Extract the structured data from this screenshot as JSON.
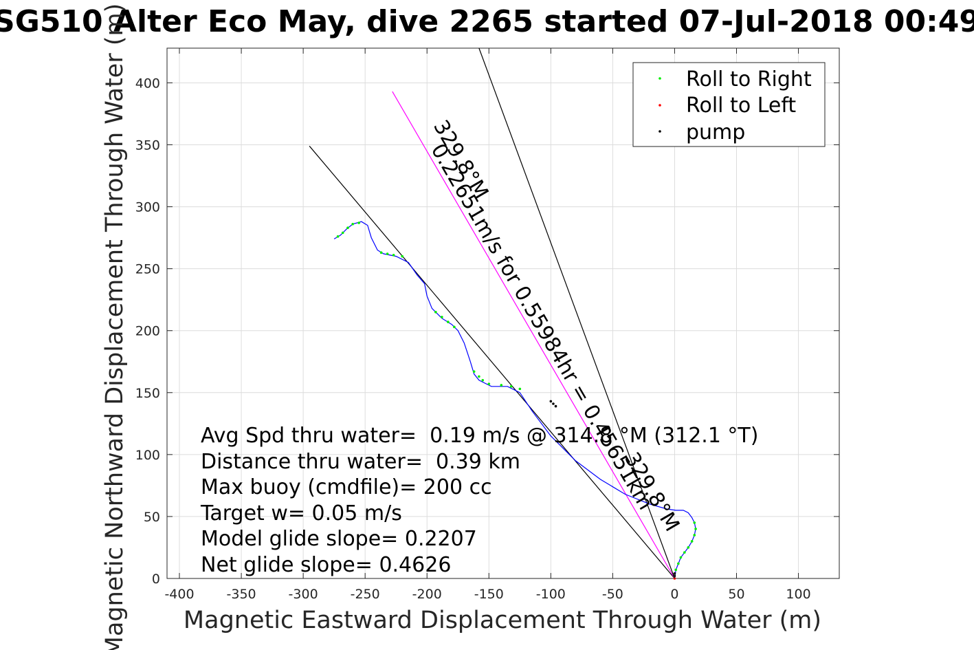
{
  "chart_data": {
    "type": "scatter",
    "title": "SG510 Alter Eco May, dive 2265 started 07-Jul-2018 00:49",
    "xlabel": "Magnetic Eastward Displacement Through Water (m)",
    "ylabel": "Magnetic Northward Displacement Through Water (m)",
    "xlim": [
      -410,
      133
    ],
    "ylim": [
      0,
      428
    ],
    "xticks": [
      -400,
      -350,
      -300,
      -250,
      -200,
      -150,
      -100,
      -50,
      0,
      50,
      100
    ],
    "yticks": [
      0,
      50,
      100,
      150,
      200,
      250,
      300,
      350,
      400
    ],
    "grid": true,
    "legend_position": "top-right",
    "legend": [
      {
        "label": "Roll to Right",
        "color": "#00ee00"
      },
      {
        "label": "Roll to Left",
        "color": "#ff0000"
      },
      {
        "label": "pump",
        "color": "#000000"
      }
    ],
    "track_color": "#0000ff",
    "track": [
      [
        0,
        0
      ],
      [
        1,
        7
      ],
      [
        3,
        12
      ],
      [
        5,
        17
      ],
      [
        8,
        21
      ],
      [
        11,
        25
      ],
      [
        14,
        30
      ],
      [
        16,
        35
      ],
      [
        17,
        40
      ],
      [
        16,
        45
      ],
      [
        14,
        49
      ],
      [
        11,
        53
      ],
      [
        7,
        55
      ],
      [
        1,
        55
      ],
      [
        -6,
        56
      ],
      [
        -20,
        60
      ],
      [
        -40,
        68
      ],
      [
        -60,
        80
      ],
      [
        -80,
        95
      ],
      [
        -100,
        115
      ],
      [
        -115,
        135
      ],
      [
        -125,
        150
      ],
      [
        -135,
        155
      ],
      [
        -148,
        155
      ],
      [
        -158,
        160
      ],
      [
        -162,
        165
      ],
      [
        -165,
        175
      ],
      [
        -170,
        190
      ],
      [
        -175,
        200
      ],
      [
        -180,
        205
      ],
      [
        -188,
        210
      ],
      [
        -196,
        218
      ],
      [
        -200,
        228
      ],
      [
        -202,
        238
      ],
      [
        -208,
        245
      ],
      [
        -215,
        255
      ],
      [
        -225,
        260
      ],
      [
        -235,
        262
      ],
      [
        -240,
        265
      ],
      [
        -245,
        275
      ],
      [
        -248,
        285
      ],
      [
        -253,
        288
      ],
      [
        -260,
        286
      ],
      [
        -265,
        282
      ],
      [
        -270,
        277
      ],
      [
        -275,
        274
      ]
    ],
    "roll_right": [
      [
        1,
        7
      ],
      [
        3,
        12
      ],
      [
        5,
        17
      ],
      [
        8,
        21
      ],
      [
        11,
        25
      ],
      [
        14,
        30
      ],
      [
        16,
        35
      ],
      [
        17,
        40
      ],
      [
        16,
        45
      ],
      [
        -125,
        153
      ],
      [
        -132,
        155
      ],
      [
        -140,
        156
      ],
      [
        -150,
        157
      ],
      [
        -155,
        160
      ],
      [
        -158,
        163
      ],
      [
        -162,
        167
      ],
      [
        -178,
        203
      ],
      [
        -183,
        207
      ],
      [
        -188,
        211
      ],
      [
        -193,
        215
      ],
      [
        -220,
        260
      ],
      [
        -227,
        261
      ],
      [
        -232,
        262
      ],
      [
        -237,
        263
      ],
      [
        -255,
        287
      ],
      [
        -260,
        286
      ],
      [
        -264,
        283
      ],
      [
        -268,
        279
      ],
      [
        -272,
        276
      ]
    ],
    "roll_left": [
      [
        0,
        0
      ]
    ],
    "pump": [
      [
        0,
        2
      ],
      [
        0,
        4
      ],
      [
        -96,
        139
      ],
      [
        -98,
        141
      ],
      [
        -100,
        143
      ]
    ],
    "reference_lines": [
      {
        "from": [
          0,
          0
        ],
        "to": [
          -295,
          349
        ],
        "color": "#000000"
      },
      {
        "from": [
          0,
          0
        ],
        "to": [
          -228,
          393
        ],
        "color": "#ff00ff"
      },
      {
        "from": [
          0,
          0
        ],
        "to": [
          -158,
          428
        ],
        "color": "#000000"
      }
    ],
    "line_labels": [
      {
        "text": "329.8°M",
        "color": "#000000"
      },
      {
        "text": "329.8°M",
        "color": "#000000"
      },
      {
        "text": "0.22651m/s for 0.55984hr = 0.45651km",
        "color": "#000000"
      }
    ],
    "annotations": [
      "Avg Spd thru water=  0.19 m/s @ 314.8 °M (312.1 °T)",
      "Distance thru water=  0.39 km",
      "Max buoy (cmdfile)= 200 cc",
      "Target w= 0.05 m/s",
      "Model glide slope= 0.2207",
      "Net glide slope= 0.4626"
    ]
  }
}
